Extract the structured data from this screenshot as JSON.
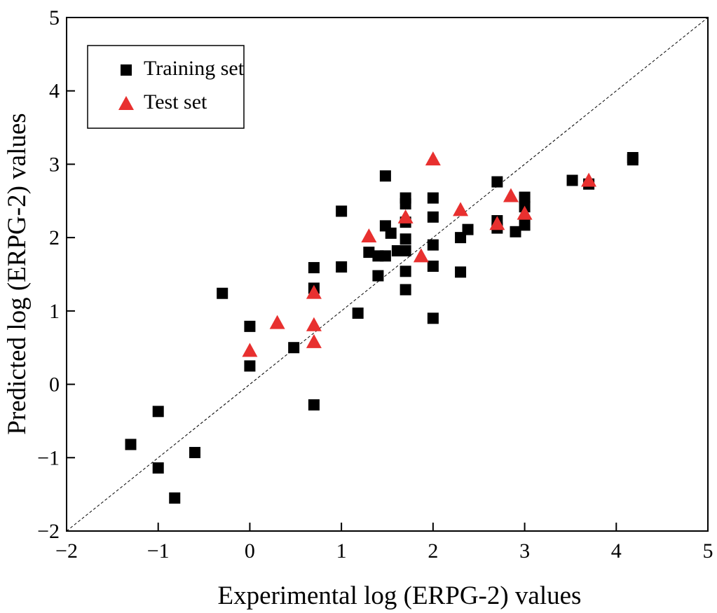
{
  "chart_data": {
    "type": "scatter",
    "xlabel": "Experimental log (ERPG-2) values",
    "ylabel": "Predicted log (ERPG-2) values",
    "xlim": [
      -2,
      5
    ],
    "ylim": [
      -2,
      5
    ],
    "xticks": [
      {
        "value": -2,
        "label": "−2"
      },
      {
        "value": -1,
        "label": "−1"
      },
      0,
      1,
      2,
      3,
      4,
      5
    ],
    "yticks": [
      {
        "value": -2,
        "label": "−2"
      },
      {
        "value": -1,
        "label": "−1"
      },
      0,
      1,
      2,
      3,
      4,
      5
    ],
    "identity_line": true,
    "legend": "upper left",
    "series": [
      {
        "name": "Training set",
        "color": "#000000",
        "marker": "square",
        "x": [
          -1.3,
          -1.0,
          -1.0,
          -0.82,
          -0.6,
          -0.3,
          0,
          0,
          0.48,
          0.7,
          0.7,
          0.7,
          1.0,
          1.0,
          1.18,
          1.3,
          1.4,
          1.4,
          1.48,
          1.48,
          1.48,
          1.54,
          1.61,
          1.7,
          1.7,
          1.7,
          1.7,
          1.7,
          1.7,
          1.7,
          2.0,
          2.0,
          2.0,
          2.0,
          2.0,
          2.3,
          2.3,
          2.38,
          2.7,
          2.7,
          2.7,
          2.9,
          3.0,
          3.0,
          3.0,
          3.52,
          3.7,
          4.18,
          4.18
        ],
        "values": [
          -0.82,
          -0.37,
          -1.14,
          -1.55,
          -0.93,
          1.24,
          0.79,
          0.25,
          0.5,
          1.59,
          1.31,
          -0.28,
          2.36,
          1.6,
          0.97,
          1.8,
          1.48,
          1.75,
          2.84,
          2.16,
          1.75,
          2.06,
          1.82,
          2.54,
          2.46,
          2.21,
          1.98,
          1.82,
          1.54,
          1.29,
          2.54,
          2.28,
          1.9,
          1.61,
          0.9,
          1.53,
          2.0,
          2.11,
          2.76,
          2.23,
          2.13,
          2.08,
          2.55,
          2.42,
          2.17,
          2.78,
          2.73,
          3.09,
          3.06
        ]
      },
      {
        "name": "Test set",
        "color": "#e8302f",
        "marker": "triangle",
        "x": [
          0,
          0.3,
          0.7,
          0.7,
          0.7,
          1.3,
          1.7,
          1.87,
          2.0,
          2.3,
          2.7,
          2.85,
          3.0,
          3.7
        ],
        "values": [
          0.46,
          0.84,
          0.58,
          0.81,
          1.25,
          2.02,
          2.28,
          1.75,
          3.07,
          2.38,
          2.19,
          2.57,
          2.33,
          2.78
        ]
      }
    ]
  }
}
